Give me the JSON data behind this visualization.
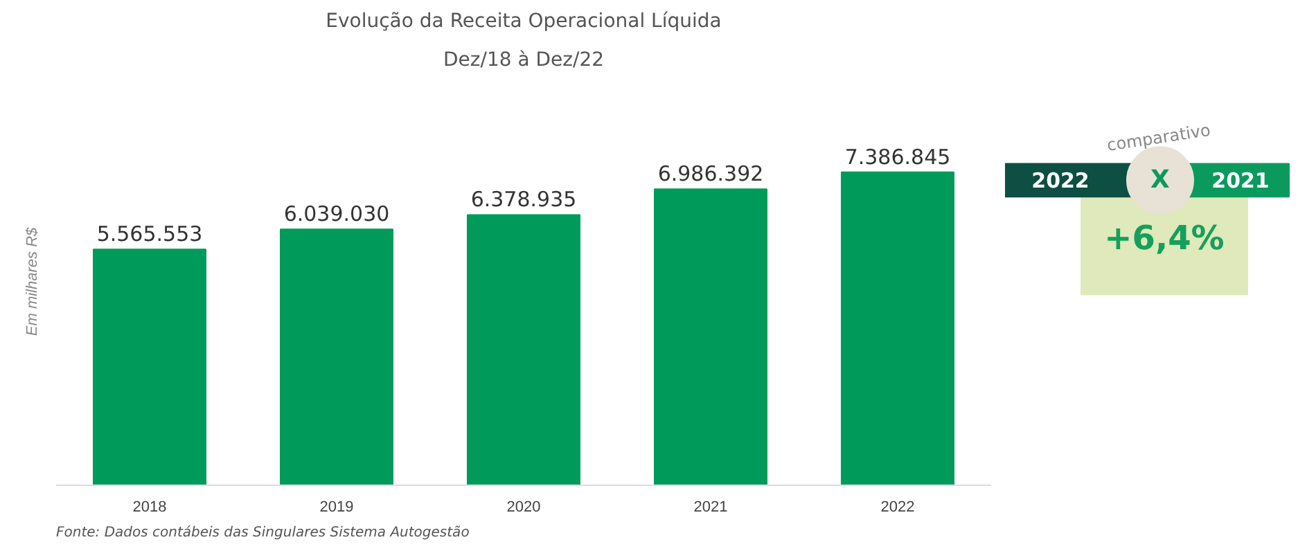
{
  "chart_data": {
    "type": "bar",
    "title": "Evolução da Receita Operacional Líquida",
    "subtitle": "Dez/18 à Dez/22",
    "ylabel": "Em milhares R$",
    "categories": [
      "2018",
      "2019",
      "2020",
      "2021",
      "2022"
    ],
    "values": [
      5565553,
      6039030,
      6378935,
      6986392,
      7386845
    ],
    "value_labels": [
      "5.565.553",
      "6.039.030",
      "6.378.935",
      "6.986.392",
      "7.386.845"
    ],
    "color": "#009b5a",
    "grid": false,
    "annotations": [
      "Fonte: Dados contábeis das Singulares Sistema Autogestão",
      "comparativo",
      "2022",
      "X",
      "2021",
      "+6,4%"
    ]
  }
}
